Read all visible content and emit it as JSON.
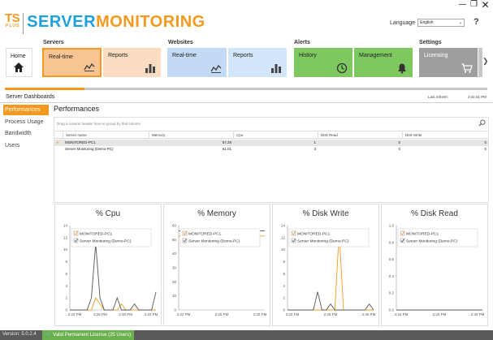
{
  "window": {
    "minimize_icon": "minimize-icon",
    "restore_icon": "restore-icon",
    "close_icon": "close-icon"
  },
  "logo": {
    "ts": "TS",
    "plus": "PLUS",
    "server": "SERVER",
    "monitoring": "MONITORING"
  },
  "language": {
    "label": "Language",
    "value": "English"
  },
  "help": {
    "icon": "help-icon",
    "glyph": "?"
  },
  "ribbon": {
    "groups": [
      {
        "id": "servers",
        "label": "Servers"
      },
      {
        "id": "websites",
        "label": "Websites"
      },
      {
        "id": "alerts",
        "label": "Alerts"
      },
      {
        "id": "settings",
        "label": "Settings"
      }
    ],
    "home": {
      "label": "Home",
      "icon": "home-icon"
    },
    "servers_realtime": {
      "label": "Real-time",
      "icon": "line-chart-icon",
      "active": true
    },
    "servers_reports": {
      "label": "Reports",
      "icon": "bar-chart-icon"
    },
    "websites_realtime": {
      "label": "Real-time",
      "icon": "line-chart-icon"
    },
    "websites_reports": {
      "label": "Reports",
      "icon": "bar-chart-icon"
    },
    "alerts_history": {
      "label": "History",
      "icon": "history-icon"
    },
    "alerts_management": {
      "label": "Management",
      "icon": "bell-icon"
    },
    "settings_licensing": {
      "label": "Licensing",
      "icon": "cart-icon"
    },
    "scroll_icon": "chevron-right-icon",
    "colors": {
      "orange": "#f39a1e",
      "blue": "#1ea0dc",
      "green": "#7ec860",
      "gray": "#9e9e9e"
    }
  },
  "progress": {
    "fraction": 0.165
  },
  "dashboard": {
    "title": "Server Dashboards",
    "refresh_label": "Last refresh:",
    "refresh_time": "2:31:51 PM"
  },
  "sidebar": {
    "items": [
      {
        "label": "Performances",
        "active": true
      },
      {
        "label": "Process Usage",
        "active": false
      },
      {
        "label": "Bandwidth",
        "active": false
      },
      {
        "label": "Users",
        "active": false
      }
    ]
  },
  "panel": {
    "title": "Performances",
    "group_hint": "Drag a column header here to group by that column",
    "search_icon": "search-icon",
    "columns": [
      "Server name",
      "Memory",
      "Cpu",
      "Disk Read",
      "Disk Write"
    ],
    "rows": [
      {
        "selected": true,
        "cells": [
          "MONITORED-PC1",
          "57.28",
          "1",
          "0",
          "0"
        ]
      },
      {
        "selected": false,
        "cells": [
          "Server Monitoring (Demo-PC)",
          "61.01",
          "3",
          "0",
          "0"
        ]
      }
    ]
  },
  "charts": [
    {
      "title": "% Cpu",
      "yticks": [
        "14",
        "12",
        "10",
        "8",
        "6",
        "4",
        "2",
        "0"
      ],
      "ylim": [
        0,
        14
      ],
      "xticks": [
        "2:22 PM",
        "2:26 PM",
        "2:30 PM",
        "2:33 PM"
      ],
      "legend": [
        "MONITORED-PC1",
        "Server Monitoring (Demo-PC)"
      ]
    },
    {
      "title": "% Memory",
      "yticks": [
        "60",
        "50",
        "40",
        "30",
        "20",
        "10",
        "0"
      ],
      "ylim": [
        0,
        65
      ],
      "xticks": [
        "2:22 PM",
        "2:26 PM",
        "2:30 PM"
      ],
      "legend": [
        "MONITORED-PC1",
        "Server Monitoring (Demo-PC)"
      ]
    },
    {
      "title": "% Disk Write",
      "yticks": [
        "14",
        "12",
        "10",
        "8",
        "6",
        "4",
        "2",
        "0"
      ],
      "ylim": [
        0,
        14
      ],
      "xticks": [
        "2:22 PM",
        "2:26 PM",
        "2:30 PM"
      ],
      "legend": [
        "MONITORED-PC1",
        "Server Monitoring (Demo-PC)"
      ]
    },
    {
      "title": "% Disk Read",
      "yticks": [
        "1.0",
        "0.8",
        "0.6",
        "0.4",
        "0.2",
        "0.0"
      ],
      "ylim": [
        0,
        1
      ],
      "xticks": [
        "2:22 PM",
        "2:26 PM",
        "2:30 PM"
      ],
      "legend": [
        "MONITORED-PC1",
        "Server Monitoring (Demo-PC)"
      ]
    }
  ],
  "chart_data": [
    {
      "type": "line",
      "title": "% Cpu",
      "ylim": [
        0,
        14
      ],
      "x": [
        0,
        1,
        2,
        3,
        4,
        5,
        6,
        7,
        8,
        9,
        10,
        11,
        12,
        13,
        14,
        15,
        16,
        17,
        18,
        19,
        20
      ],
      "series": [
        {
          "name": "MONITORED-PC1",
          "color": "#f39a1e",
          "values": [
            0,
            0,
            0,
            0,
            0,
            0,
            2,
            1,
            0,
            0,
            0,
            0,
            1,
            0,
            0,
            0,
            0,
            0,
            0,
            0,
            0
          ]
        },
        {
          "name": "Server Monitoring (Demo-PC)",
          "color": "#555555",
          "values": [
            0,
            0,
            0,
            0,
            0,
            2,
            11,
            2,
            0,
            0,
            0,
            2,
            0,
            0,
            0,
            1,
            0,
            0,
            0,
            0,
            3
          ]
        }
      ]
    },
    {
      "type": "line",
      "title": "% Memory",
      "ylim": [
        0,
        65
      ],
      "x": [
        0,
        1,
        2,
        3,
        4,
        5,
        6,
        7,
        8,
        9,
        10,
        11,
        12,
        13,
        14,
        15,
        16,
        17,
        18,
        19,
        20
      ],
      "series": [
        {
          "name": "MONITORED-PC1",
          "color": "#f39a1e",
          "values": [
            57,
            57,
            57,
            57,
            57,
            57,
            57,
            57,
            57,
            57,
            57,
            57,
            57,
            57,
            57,
            57,
            57,
            57,
            57,
            57,
            57
          ]
        },
        {
          "name": "Server Monitoring (Demo-PC)",
          "color": "#555555",
          "values": [
            61,
            61,
            61,
            61,
            61,
            61,
            61,
            61,
            61,
            61,
            61,
            61,
            61,
            61,
            61,
            61,
            61,
            61,
            61,
            61,
            61
          ]
        }
      ]
    },
    {
      "type": "line",
      "title": "% Disk Write",
      "ylim": [
        0,
        14
      ],
      "x": [
        0,
        1,
        2,
        3,
        4,
        5,
        6,
        7,
        8,
        9,
        10,
        11,
        12,
        13,
        14,
        15,
        16,
        17,
        18,
        19,
        20
      ],
      "series": [
        {
          "name": "MONITORED-PC1",
          "color": "#f39a1e",
          "values": [
            0,
            0,
            0,
            0,
            0,
            0,
            0,
            0,
            0,
            0,
            0,
            0,
            13,
            0,
            0,
            0,
            0,
            0,
            0,
            0,
            0
          ]
        },
        {
          "name": "Server Monitoring (Demo-PC)",
          "color": "#555555",
          "values": [
            0,
            0,
            0,
            0,
            0,
            0,
            0,
            3,
            0,
            0,
            1,
            0,
            0,
            0,
            0,
            0,
            0,
            0,
            0,
            1,
            0
          ]
        }
      ]
    },
    {
      "type": "line",
      "title": "% Disk Read",
      "ylim": [
        0,
        1
      ],
      "x": [
        0,
        1,
        2,
        3,
        4,
        5,
        6,
        7,
        8,
        9,
        10,
        11,
        12,
        13,
        14,
        15,
        16,
        17,
        18,
        19,
        20
      ],
      "series": [
        {
          "name": "MONITORED-PC1",
          "color": "#f39a1e",
          "values": [
            0,
            0,
            0,
            0,
            0,
            0,
            0,
            0,
            0,
            0,
            0,
            0,
            0,
            0,
            0,
            0,
            0,
            0,
            0,
            0,
            0
          ]
        },
        {
          "name": "Server Monitoring (Demo-PC)",
          "color": "#555555",
          "values": [
            0,
            0,
            0,
            0,
            0,
            0,
            0,
            0,
            0,
            0,
            0,
            0,
            0,
            0,
            0,
            0,
            0,
            0,
            0,
            0,
            0
          ]
        }
      ]
    }
  ],
  "statusbar": {
    "version": "Version: 5.0.2.4",
    "license": "Valid Permanent License (25 Users)",
    "license_icon": "cart-icon"
  }
}
